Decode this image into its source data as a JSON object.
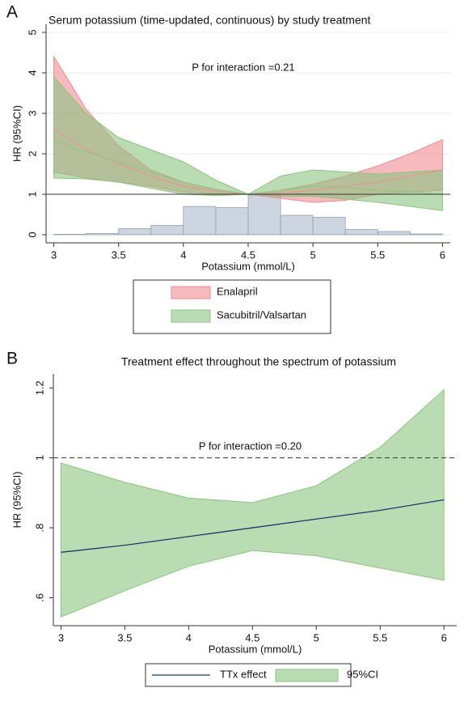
{
  "chart_data": [
    {
      "type": "band",
      "panel": "A",
      "title": "Serum potassium (time-updated, continuous) by study treatment",
      "annotation": "P for interaction =0.21",
      "x_label": "Potassium (mmol/L)",
      "y_label": "HR (95%CI)",
      "xlim": [
        2.94,
        6.06
      ],
      "ylim": [
        -0.2,
        5.2
      ],
      "xticks": [
        3,
        3.5,
        4,
        4.5,
        5,
        5.5,
        6
      ],
      "yticks": [
        0,
        1,
        2,
        3,
        4,
        5
      ],
      "grid": true,
      "hline": 1,
      "hline_style": "solid",
      "x": [
        3,
        3.25,
        3.5,
        3.75,
        4,
        4.25,
        4.5,
        4.75,
        5,
        5.25,
        5.5,
        5.75,
        6
      ],
      "series": [
        {
          "name": "Enalapril",
          "color": "#f08c92",
          "values": [
            2.6,
            2.1,
            1.75,
            1.45,
            1.2,
            1.08,
            1.0,
            1.03,
            1.1,
            1.2,
            1.3,
            1.45,
            1.6
          ],
          "upper": [
            4.4,
            3.1,
            2.2,
            1.6,
            1.3,
            1.12,
            1.0,
            1.1,
            1.25,
            1.45,
            1.7,
            2.0,
            2.35
          ],
          "lower": [
            1.55,
            1.4,
            1.3,
            1.2,
            1.05,
            1.02,
            1.0,
            0.9,
            0.8,
            0.85,
            1.0,
            1.05,
            1.1
          ]
        },
        {
          "name": "Sacubitril/Valsartan",
          "color": "#8cc47e",
          "values": [
            2.3,
            2.05,
            1.8,
            1.55,
            1.3,
            1.12,
            1.0,
            1.1,
            1.2,
            1.18,
            1.1,
            1.05,
            1.0
          ],
          "upper": [
            3.9,
            3.0,
            2.4,
            2.1,
            1.8,
            1.35,
            1.0,
            1.45,
            1.6,
            1.55,
            1.5,
            1.55,
            1.6
          ],
          "lower": [
            1.4,
            1.38,
            1.3,
            1.15,
            1.0,
            0.97,
            1.0,
            0.95,
            0.95,
            0.88,
            0.8,
            0.7,
            0.6
          ]
        }
      ],
      "histogram": {
        "color": "#cdd6e0",
        "bins": [
          3,
          3.25,
          3.5,
          3.75,
          4,
          4.25,
          4.5,
          4.75,
          5,
          5.25,
          5.5,
          5.75,
          6
        ],
        "counts": [
          0.01,
          0.03,
          0.15,
          0.23,
          0.7,
          0.67,
          0.98,
          0.48,
          0.43,
          0.13,
          0.08,
          0.02
        ]
      }
    },
    {
      "type": "band",
      "panel": "B",
      "title": "Treatment effect throughout the spectrum of potassium",
      "annotation": "P for interaction =0.20",
      "x_label": "Potassium (mmol/L)",
      "y_label": "HR (95%CI)",
      "xlim": [
        2.94,
        6.1
      ],
      "ylim": [
        0.52,
        1.24
      ],
      "xticks": [
        3,
        3.5,
        4,
        4.5,
        5,
        5.5,
        6
      ],
      "yticks": [
        {
          "value": 0.6,
          "label": ".6"
        },
        {
          "value": 0.8,
          "label": ".8"
        },
        1,
        1.2
      ],
      "grid": false,
      "hline": 1,
      "hline_style": "dashed",
      "x": [
        3,
        3.5,
        4,
        4.5,
        5,
        5.5,
        6
      ],
      "series": [
        {
          "name": "TTx effect",
          "color": "#1a3a6e",
          "values": [
            0.73,
            0.75,
            0.775,
            0.8,
            0.825,
            0.85,
            0.88
          ]
        },
        {
          "name": "95%CI",
          "color": "#8cc47e",
          "upper": [
            0.985,
            0.93,
            0.885,
            0.872,
            0.92,
            1.03,
            1.195
          ],
          "lower": [
            0.545,
            0.62,
            0.69,
            0.735,
            0.72,
            0.685,
            0.65
          ]
        }
      ]
    }
  ]
}
